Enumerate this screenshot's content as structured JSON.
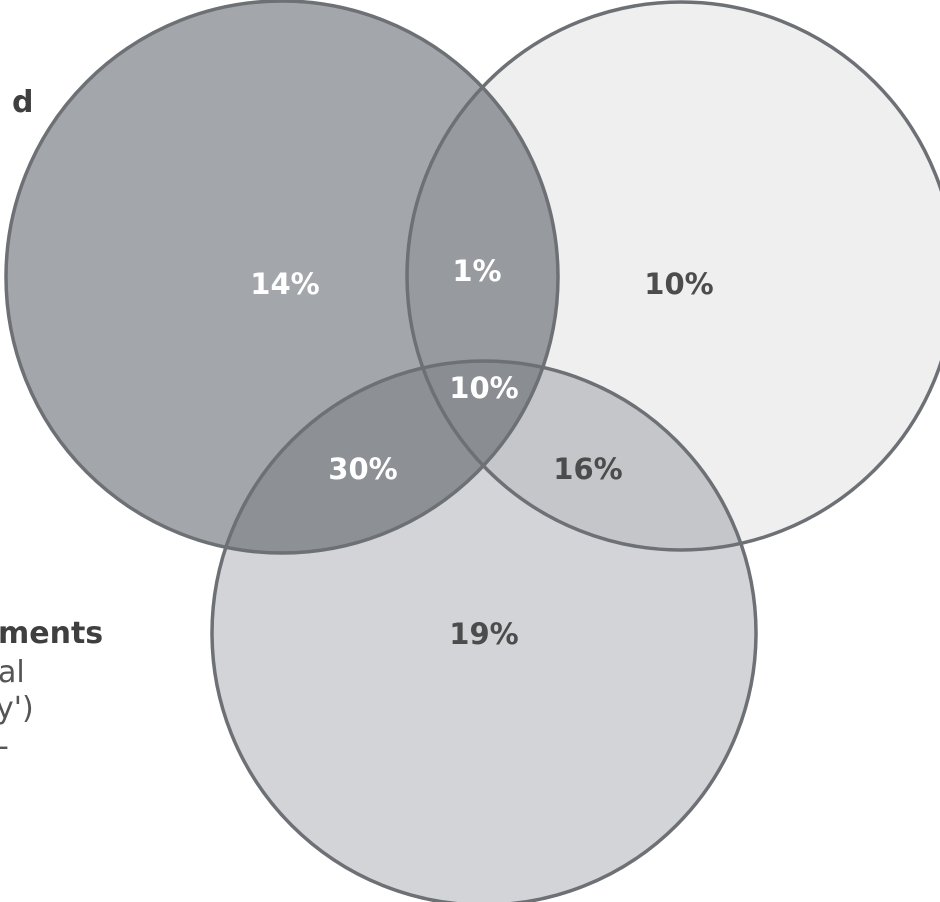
{
  "colors": {
    "circle_a_fill": "#a3a7ab",
    "circle_b_fill": "#efefef",
    "circle_c_fill": "#d2d4d7",
    "a_and_b_fill": "#979b9f",
    "a_and_c_fill": "#8d9195",
    "b_and_c_fill": "#c4c6c9",
    "abc_fill": "#8a8e92",
    "outline": "#6d7175",
    "light_label": "#ffffff",
    "dark_label": "#4c4c4c"
  },
  "side_text": {
    "line_1": "d",
    "line_2": "ments",
    "line_3": "al",
    "line_4": "y')",
    "line_5": "-"
  },
  "venn": {
    "regions": [
      {
        "key": "a_only",
        "label": "14%"
      },
      {
        "key": "a_and_b",
        "label": "1%"
      },
      {
        "key": "b_only",
        "label": "10%"
      },
      {
        "key": "a_and_b_and_c",
        "label": "10%"
      },
      {
        "key": "a_and_c",
        "label": "30%"
      },
      {
        "key": "b_and_c",
        "label": "16%"
      },
      {
        "key": "c_only",
        "label": "19%"
      }
    ]
  }
}
